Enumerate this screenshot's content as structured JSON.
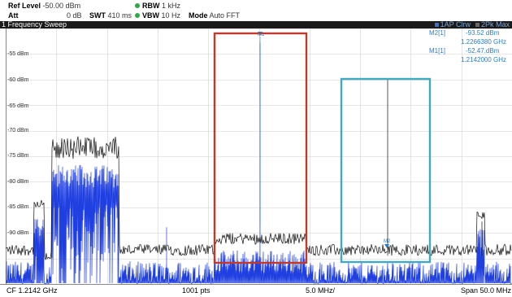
{
  "header": {
    "ref_level_label": "Ref Level",
    "ref_level_value": "-50.00 dBm",
    "att_label": "Att",
    "att_value": "0 dB",
    "swt_label": "SWT",
    "swt_value": "410 ms",
    "rbw_label": "RBW",
    "rbw_value": "1 kHz",
    "vbw_label": "VBW",
    "vbw_value": "10 Hz",
    "mode_label": "Mode",
    "mode_value": "Auto FFT",
    "indicator_color": "#2fa84a"
  },
  "window": {
    "title": "1 Frequency Sweep",
    "trace_info_1": "1AP Clrw",
    "trace_info_2": "2Pk Max"
  },
  "y_axis": {
    "ticks": [
      "-55 dBm",
      "-60 dBm",
      "-65 dBm",
      "-70 dBm",
      "-75 dBm",
      "-80 dBm",
      "-85 dBm",
      "-90 dBm"
    ]
  },
  "markers": {
    "m2": {
      "label": "M2[1]",
      "level": "-93.52 dBm",
      "freq": "1.2266380 GHz",
      "trace_label": "M2"
    },
    "m1": {
      "label": "M1[1]",
      "level": "-52.47.dBm",
      "freq": "1.2142000 GHz",
      "trace_label": "M1"
    }
  },
  "annotation_colors": {
    "red_box": "#c0392b",
    "cyan_box": "#3fa9c0",
    "trace_clrw": "#1f3fe0",
    "trace_max": "#111111"
  },
  "footer": {
    "center": "CF 1.2142 GHz",
    "points": "1001 pts",
    "div": "5.0 MHz/",
    "span": "Span 50.0 MHz"
  },
  "chart_data": {
    "type": "line",
    "xlim_mhz": [
      1189.2,
      1239.2
    ],
    "ylim_dbm": [
      -96,
      -51
    ],
    "grid": true,
    "series": [
      {
        "name": "1AP Clrw",
        "color": "#1f3fe0"
      },
      {
        "name": "2Pk Max",
        "color": "#111111"
      }
    ],
    "markers": [
      {
        "name": "M1",
        "x_ghz": 1.2142,
        "y_dbm": -52.47
      },
      {
        "name": "M2",
        "x_ghz": 1.226638,
        "y_dbm": -93.52
      }
    ]
  }
}
